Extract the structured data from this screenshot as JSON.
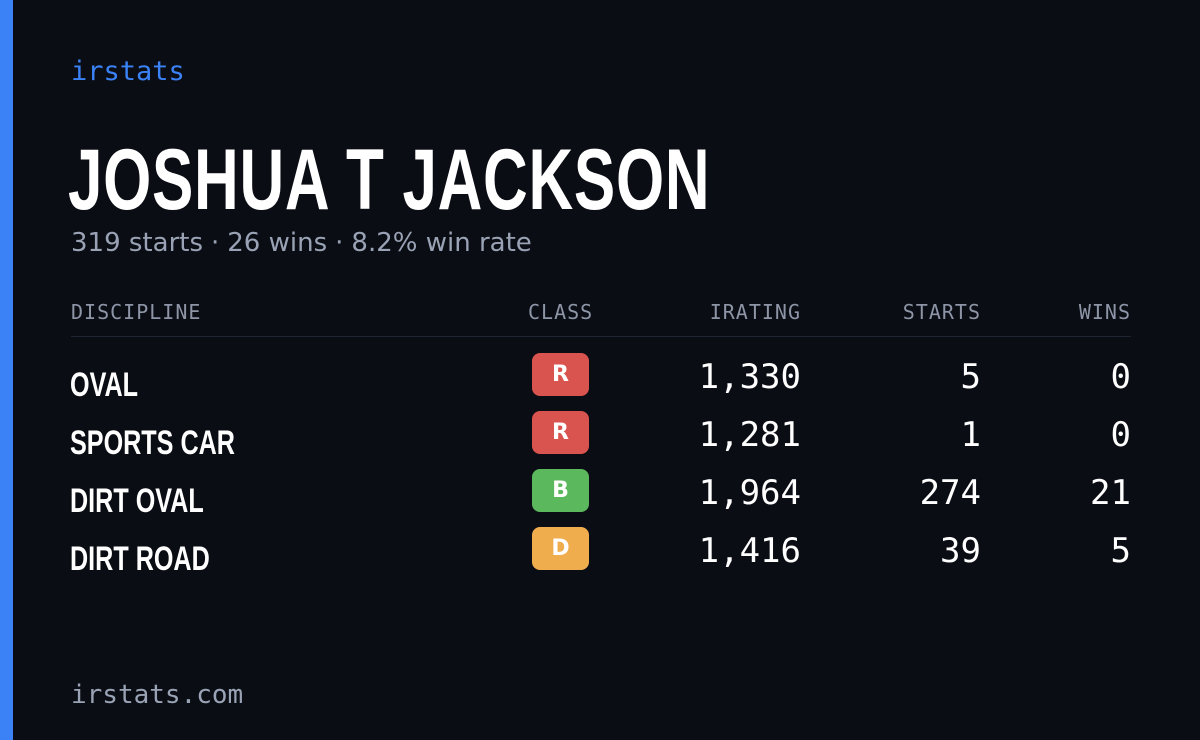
{
  "brand": "irstats",
  "player": {
    "name": "JOSHUA T JACKSON",
    "starts_text": "319 starts",
    "wins_text": "26 wins",
    "winrate_text": "8.2% win rate",
    "separator": "·"
  },
  "table": {
    "headers": {
      "discipline": "DISCIPLINE",
      "class": "CLASS",
      "irating": "IRATING",
      "starts": "STARTS",
      "wins": "WINS"
    },
    "rows": [
      {
        "discipline": "OVAL",
        "class": "R",
        "class_color": "#d9534f",
        "irating": "1,330",
        "starts": "5",
        "wins": "0"
      },
      {
        "discipline": "SPORTS CAR",
        "class": "R",
        "class_color": "#d9534f",
        "irating": "1,281",
        "starts": "1",
        "wins": "0"
      },
      {
        "discipline": "DIRT OVAL",
        "class": "B",
        "class_color": "#5cb85c",
        "irating": "1,964",
        "starts": "274",
        "wins": "21"
      },
      {
        "discipline": "DIRT ROAD",
        "class": "D",
        "class_color": "#f0ad4e",
        "irating": "1,416",
        "starts": "39",
        "wins": "5"
      }
    ]
  },
  "footer": "irstats.com",
  "colors": {
    "background": "#0a0d14",
    "accent": "#3b82f6",
    "muted": "#9aa3b5"
  }
}
